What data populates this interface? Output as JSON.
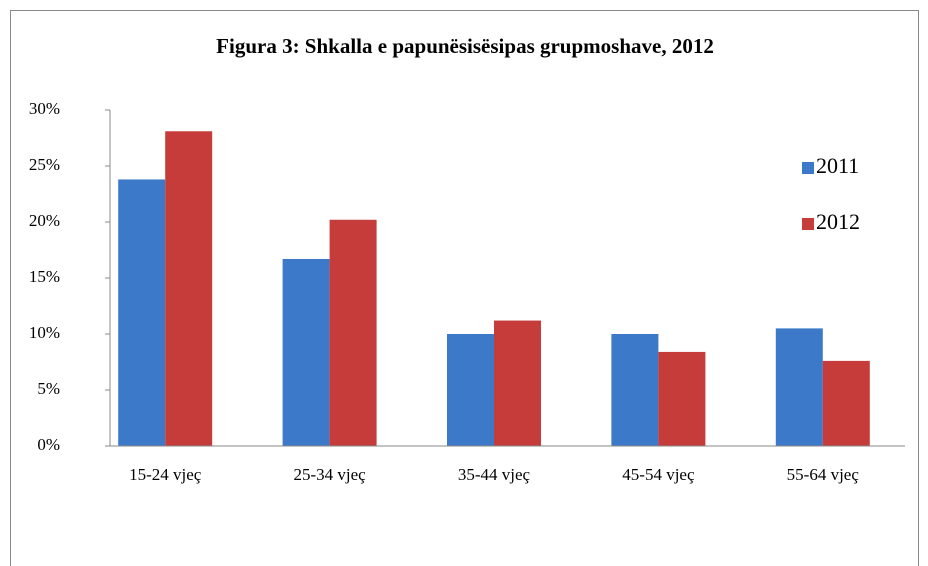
{
  "chart_data": {
    "type": "bar",
    "title": "Figura 3:  Shkalla e papunësisësipas grupmoshave, 2012",
    "categories": [
      "15-24 vjeç",
      "25-34 vjeç",
      "35-44 vjeç",
      "45-54 vjeç",
      "55-64 vjeç"
    ],
    "series": [
      {
        "name": "2011",
        "color": "#3d79c9",
        "values": [
          23.8,
          16.7,
          10.0,
          10.0,
          10.5
        ]
      },
      {
        "name": "2012",
        "color": "#c53c3a",
        "values": [
          28.1,
          20.2,
          11.2,
          8.4,
          7.6
        ]
      }
    ],
    "ylim": [
      0,
      30
    ],
    "yticks": [
      {
        "value": 0,
        "label": "0%"
      },
      {
        "value": 5,
        "label": "5%"
      },
      {
        "value": 10,
        "label": "10%"
      },
      {
        "value": 15,
        "label": "15%"
      },
      {
        "value": 20,
        "label": "20%"
      },
      {
        "value": 25,
        "label": "25%"
      },
      {
        "value": 30,
        "label": "30%"
      }
    ],
    "grid": false,
    "legend": "right"
  }
}
